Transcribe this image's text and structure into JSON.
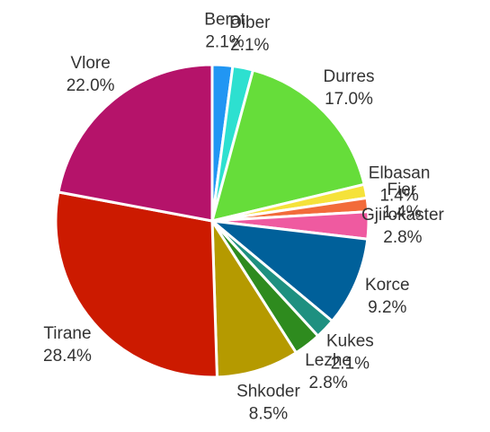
{
  "chart_data": {
    "type": "pie",
    "categories": [
      "Berat",
      "Diber",
      "Durres",
      "Elbasan",
      "Fier",
      "Gjirokaster",
      "Korce",
      "Kukes",
      "Lezhe",
      "Shkoder",
      "Tirane",
      "Vlore"
    ],
    "values": [
      2.1,
      2.1,
      17.0,
      1.4,
      1.4,
      2.8,
      9.2,
      2.1,
      2.8,
      8.5,
      28.4,
      22.0
    ],
    "value_labels": [
      "2.1%",
      "2.1%",
      "17.0%",
      "1.4%",
      "1.4%",
      "2.8%",
      "9.2%",
      "2.1%",
      "2.8%",
      "8.5%",
      "28.4%",
      "22.0%"
    ],
    "colors": [
      "#2196f3",
      "#2de0d0",
      "#66dd3a",
      "#f5e23a",
      "#f26b3a",
      "#ef5aa0",
      "#00609a",
      "#1e9080",
      "#2e8b1e",
      "#b59a00",
      "#cc1a00",
      "#b5136a"
    ]
  }
}
